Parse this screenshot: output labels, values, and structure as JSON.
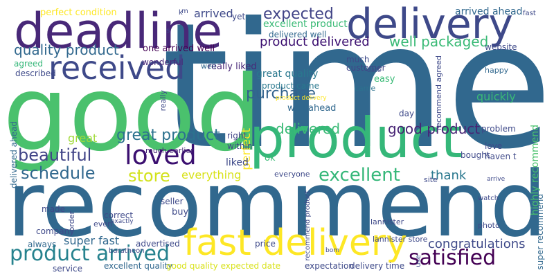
{
  "word_cloud": {
    "background_color": "#ffffff",
    "palette": [
      "#440154",
      "#482878",
      "#3e4989",
      "#31688e",
      "#26828e",
      "#1f9e89",
      "#35b779",
      "#6ece58",
      "#b5de2b",
      "#fde725"
    ],
    "words": [
      {
        "text": "time",
        "color": "#31688e"
      },
      {
        "text": "good",
        "color": "#4ac16d"
      },
      {
        "text": "recommend",
        "color": "#31688e"
      },
      {
        "text": "product",
        "color": "#35b779"
      },
      {
        "text": "deadline",
        "color": "#482878"
      },
      {
        "text": "delivery",
        "color": "#3e4989"
      },
      {
        "text": "fast delivery",
        "color": "#fde725"
      },
      {
        "text": "received",
        "color": "#3e4989"
      },
      {
        "text": "loved",
        "color": "#3b0f70"
      },
      {
        "text": "product arrived",
        "color": "#26828e"
      },
      {
        "text": "satisfied",
        "color": "#440154"
      },
      {
        "text": "excellent",
        "color": "#35b779"
      },
      {
        "text": "beautiful",
        "color": "#414487"
      },
      {
        "text": "schedule",
        "color": "#31688e"
      },
      {
        "text": "store",
        "color": "#d2e21b"
      },
      {
        "text": "great product",
        "color": "#2c728e"
      },
      {
        "text": "purchase",
        "color": "#33638d"
      },
      {
        "text": "delivered",
        "color": "#3aba76"
      },
      {
        "text": "good product",
        "color": "#482475"
      },
      {
        "text": "expected",
        "color": "#414487"
      },
      {
        "text": "product delivered",
        "color": "#3b0f70"
      },
      {
        "text": "quality product",
        "color": "#31688e"
      },
      {
        "text": "well packaged",
        "color": "#3aba76"
      },
      {
        "text": "congratulations",
        "color": "#3e4989"
      },
      {
        "text": "thank",
        "color": "#2a788e"
      },
      {
        "text": "everything",
        "color": "#d8e219"
      },
      {
        "text": "super fast",
        "color": "#31688e"
      },
      {
        "text": "great",
        "color": "#a0da39"
      },
      {
        "text": "great quality",
        "color": "#2a788e"
      },
      {
        "text": "really liked",
        "color": "#482878"
      },
      {
        "text": "arrived",
        "color": "#3e4989"
      },
      {
        "text": "perfect",
        "color": "#fde725"
      },
      {
        "text": "quickly",
        "color": "#3aba76"
      },
      {
        "text": "excellent product",
        "color": "#3aba76"
      },
      {
        "text": "delivered well",
        "color": "#31688e"
      },
      {
        "text": "one arrived well",
        "color": "#440154"
      },
      {
        "text": "well ahead",
        "color": "#31688e"
      },
      {
        "text": "product came",
        "color": "#2a788e"
      },
      {
        "text": "perfect condition",
        "color": "#fde725"
      },
      {
        "text": "arrived ahead",
        "color": "#31688e"
      },
      {
        "text": "wonderful",
        "color": "#482878"
      },
      {
        "text": "agreed",
        "color": "#35b779"
      },
      {
        "text": "described",
        "color": "#3e4989"
      },
      {
        "text": "delivered ahead",
        "color": "#31688e"
      },
      {
        "text": "website",
        "color": "#3e4989"
      },
      {
        "text": "customer",
        "color": "#414487"
      },
      {
        "text": "much",
        "color": "#3e4989"
      },
      {
        "text": "easy",
        "color": "#3aba76"
      },
      {
        "text": "came",
        "color": "#2c728e"
      },
      {
        "text": "happy",
        "color": "#31688e"
      },
      {
        "text": "day",
        "color": "#3e4989"
      },
      {
        "text": "right",
        "color": "#414487"
      },
      {
        "text": "within",
        "color": "#3e4989"
      },
      {
        "text": "much earlier",
        "color": "#482878"
      },
      {
        "text": "liked",
        "color": "#3e4989"
      },
      {
        "text": "ok",
        "color": "#3aba76"
      },
      {
        "text": "everyone",
        "color": "#3e4989"
      },
      {
        "text": "seller",
        "color": "#3e4989"
      },
      {
        "text": "buy",
        "color": "#3e4989"
      },
      {
        "text": "made",
        "color": "#3e4989"
      },
      {
        "text": "correct",
        "color": "#3e4989"
      },
      {
        "text": "company",
        "color": "#3e4989"
      },
      {
        "text": "always",
        "color": "#31688e"
      },
      {
        "text": "advertised",
        "color": "#3e4989"
      },
      {
        "text": "price",
        "color": "#3e4989"
      },
      {
        "text": "service",
        "color": "#3e4989"
      },
      {
        "text": "excellent quality",
        "color": "#31688e"
      },
      {
        "text": "good quality expected date",
        "color": "#d8e219"
      },
      {
        "text": "expectation",
        "color": "#3e4989"
      },
      {
        "text": "delivery time",
        "color": "#3e4989"
      },
      {
        "text": "bought",
        "color": "#3e4989"
      },
      {
        "text": "love",
        "color": "#3e4989"
      },
      {
        "text": "haven t",
        "color": "#3e4989"
      },
      {
        "text": "problem",
        "color": "#3e4989"
      },
      {
        "text": "site",
        "color": "#3e4989"
      },
      {
        "text": "watch",
        "color": "#3e4989"
      },
      {
        "text": "photo",
        "color": "#3e4989"
      },
      {
        "text": "lannister",
        "color": "#3e4989"
      },
      {
        "text": "lannister store",
        "color": "#3e4989"
      },
      {
        "text": "highly recommend",
        "color": "#4ac16d"
      },
      {
        "text": "super recommend",
        "color": "#31688e"
      },
      {
        "text": "recommend product",
        "color": "#3e4989"
      },
      {
        "text": "recommend agreed",
        "color": "#3e4989"
      },
      {
        "text": "order",
        "color": "#3e4989"
      },
      {
        "text": "baratheon",
        "color": "#3e4989"
      },
      {
        "text": "even",
        "color": "#3e4989"
      },
      {
        "text": "exactly",
        "color": "#3e4989"
      },
      {
        "text": "yet",
        "color": "#3e4989"
      },
      {
        "text": "fast",
        "color": "#3e4989"
      },
      {
        "text": "product delivery",
        "color": "#fde725"
      },
      {
        "text": "date",
        "color": "#3e4989"
      },
      {
        "text": "arrive",
        "color": "#3e4989"
      },
      {
        "text": "bom",
        "color": "#3e4989"
      },
      {
        "text": "use",
        "color": "#3e4989"
      },
      {
        "text": "m",
        "color": "#3e4989"
      },
      {
        "text": "s",
        "color": "#3e4989"
      },
      {
        "text": "k",
        "color": "#3e4989"
      },
      {
        "text": "really",
        "color": "#3e4989"
      },
      {
        "text": "well",
        "color": "#31688e"
      }
    ]
  }
}
